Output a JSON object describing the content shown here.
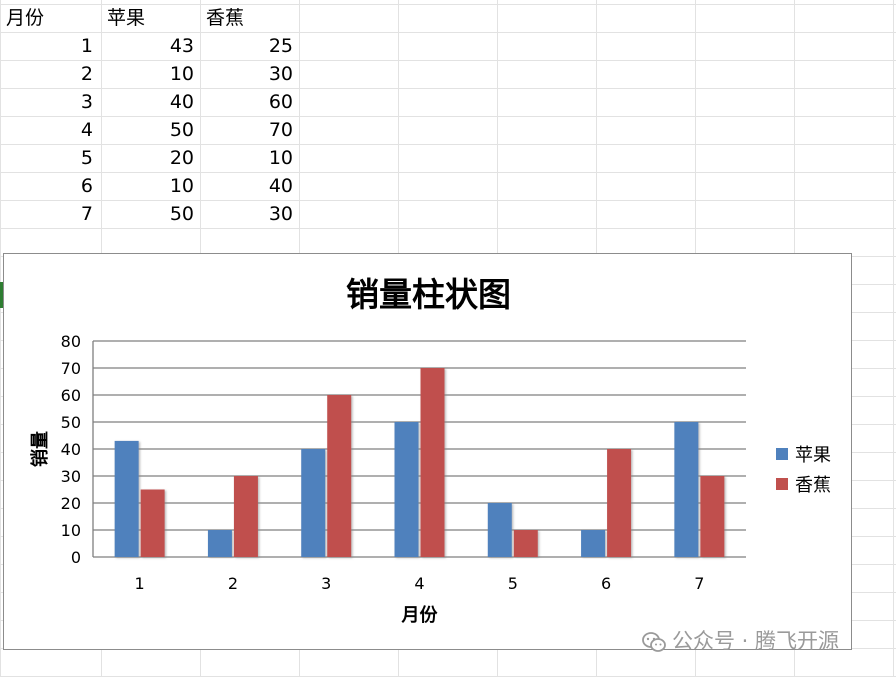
{
  "sheet": {
    "headers": [
      "月份",
      "苹果",
      "香蕉"
    ],
    "rows": [
      [
        "1",
        "43",
        "25"
      ],
      [
        "2",
        "10",
        "30"
      ],
      [
        "3",
        "40",
        "60"
      ],
      [
        "4",
        "50",
        "70"
      ],
      [
        "5",
        "20",
        "10"
      ],
      [
        "6",
        "10",
        "40"
      ],
      [
        "7",
        "50",
        "30"
      ]
    ]
  },
  "chart_data": {
    "type": "bar",
    "title": "销量柱状图",
    "xlabel": "月份",
    "ylabel": "销量",
    "categories": [
      "1",
      "2",
      "3",
      "4",
      "5",
      "6",
      "7"
    ],
    "series": [
      {
        "name": "苹果",
        "values": [
          43,
          10,
          40,
          50,
          20,
          10,
          50
        ],
        "color": "#4f81bd"
      },
      {
        "name": "香蕉",
        "values": [
          25,
          30,
          60,
          70,
          10,
          40,
          30
        ],
        "color": "#c0504d"
      }
    ],
    "ylim": [
      0,
      80
    ],
    "yticks": [
      0,
      10,
      20,
      30,
      40,
      50,
      60,
      70,
      80
    ],
    "grid": true,
    "legend": "right"
  },
  "watermark": {
    "text": "公众号 · 腾飞开源",
    "icon": "wechat-icon"
  }
}
